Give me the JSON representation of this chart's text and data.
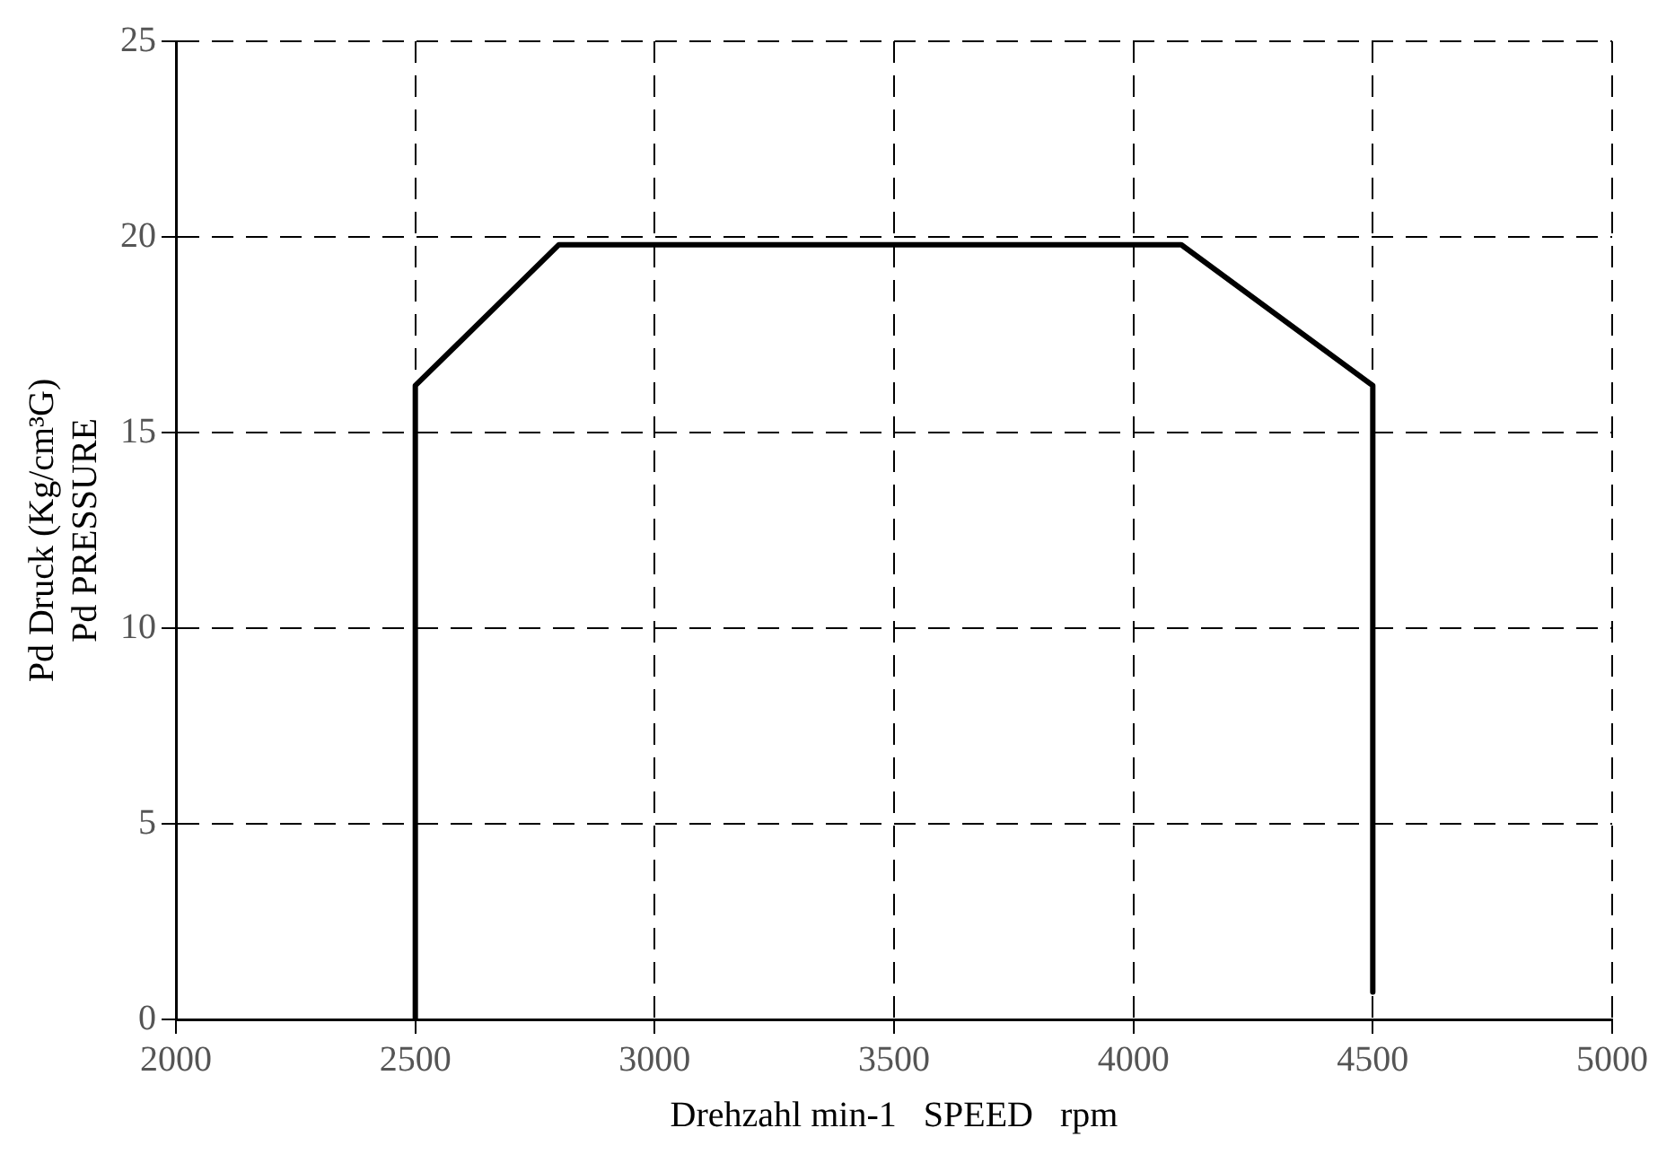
{
  "chart_data": {
    "type": "line",
    "xlabel": "Drehzahl min-1   SPEED   rpm",
    "ylabel": "Pd Druck (Kg/cm³G)\nPd PRESSURE",
    "x": [
      2500,
      2500,
      2800,
      4100,
      4500,
      4500
    ],
    "series": [
      {
        "color": "#000000",
        "values": [
          0,
          16.2,
          19.8,
          19.8,
          16.2,
          0.7
        ]
      }
    ],
    "xlim": [
      2000,
      5000
    ],
    "xticks": [
      2000,
      2500,
      3000,
      3500,
      4000,
      4500,
      5000
    ],
    "ylim": [
      0,
      25
    ],
    "yticks": [
      0,
      5,
      10,
      15,
      20,
      25
    ],
    "grid": true,
    "legend": false,
    "marker": "none",
    "line_style": "solid"
  }
}
